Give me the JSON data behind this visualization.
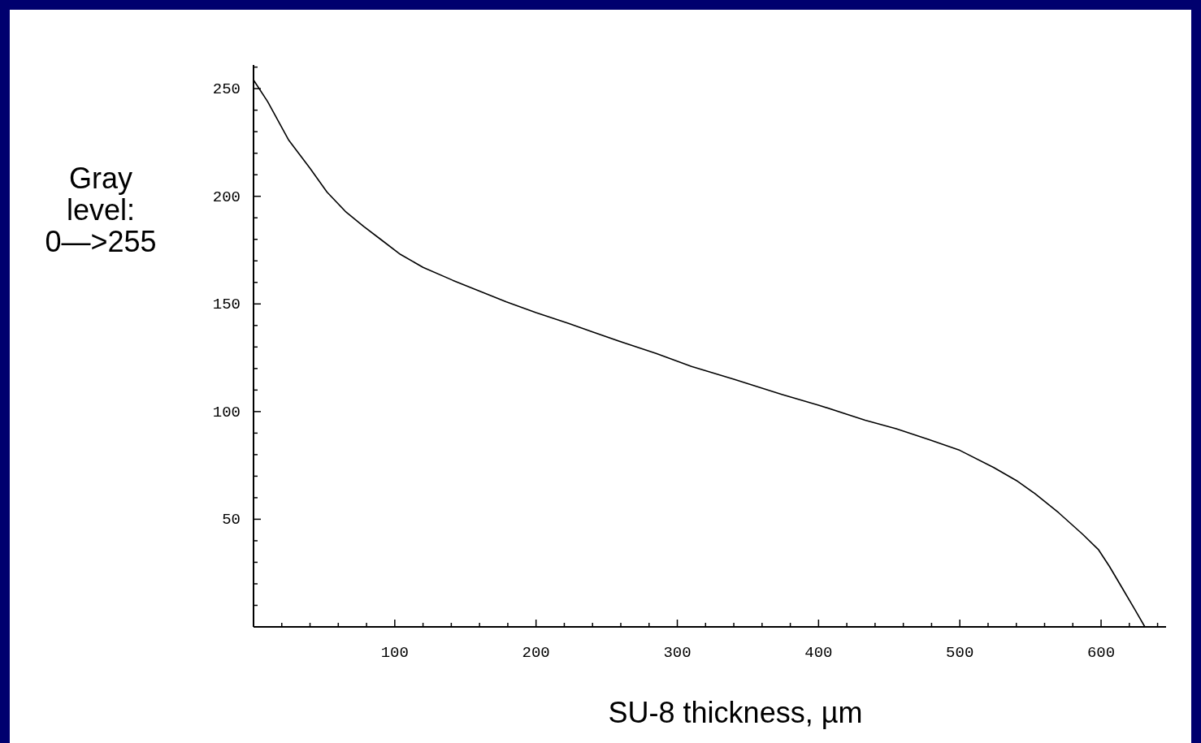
{
  "chart_data": {
    "type": "line",
    "xlabel": "SU-8 thickness, µm",
    "ylabel": "Gray level: 0—>255",
    "x": [
      0,
      10,
      25,
      40,
      52,
      65,
      78,
      90,
      104,
      120,
      141,
      160,
      179,
      200,
      223,
      240,
      262,
      285,
      310,
      340,
      374,
      400,
      433,
      455,
      478,
      500,
      524,
      540,
      553,
      570,
      587,
      598,
      606,
      615,
      624,
      631
    ],
    "series": [
      {
        "color": "#000000",
        "values": [
          254,
          244,
          226,
          213,
          202,
          193,
          186,
          180,
          173,
          167,
          161,
          156,
          151,
          146,
          141,
          137,
          132,
          127,
          121,
          115,
          108,
          103,
          96,
          92,
          87,
          82,
          74,
          68,
          62,
          53,
          43,
          36,
          28,
          18,
          8,
          0
        ]
      }
    ],
    "xlim": [
      0,
      646
    ],
    "ylim": [
      0,
      261
    ],
    "xticks": [
      {
        "value": 20,
        "label": null
      },
      {
        "value": 40,
        "label": null
      },
      {
        "value": 60,
        "label": null
      },
      {
        "value": 80,
        "label": null
      },
      100,
      {
        "value": 120,
        "label": null
      },
      {
        "value": 140,
        "label": null
      },
      {
        "value": 160,
        "label": null
      },
      {
        "value": 180,
        "label": null
      },
      200,
      {
        "value": 220,
        "label": null
      },
      {
        "value": 240,
        "label": null
      },
      {
        "value": 260,
        "label": null
      },
      {
        "value": 280,
        "label": null
      },
      300,
      {
        "value": 320,
        "label": null
      },
      {
        "value": 340,
        "label": null
      },
      {
        "value": 360,
        "label": null
      },
      {
        "value": 380,
        "label": null
      },
      400,
      {
        "value": 420,
        "label": null
      },
      {
        "value": 440,
        "label": null
      },
      {
        "value": 460,
        "label": null
      },
      {
        "value": 480,
        "label": null
      },
      500,
      {
        "value": 520,
        "label": null
      },
      {
        "value": 540,
        "label": null
      },
      {
        "value": 560,
        "label": null
      },
      {
        "value": 580,
        "label": null
      },
      600,
      {
        "value": 620,
        "label": null
      },
      {
        "value": 640,
        "label": null
      }
    ],
    "yticks": [
      {
        "value": 10,
        "label": null
      },
      {
        "value": 20,
        "label": null
      },
      {
        "value": 30,
        "label": null
      },
      {
        "value": 40,
        "label": null
      },
      50,
      {
        "value": 60,
        "label": null
      },
      {
        "value": 70,
        "label": null
      },
      {
        "value": 80,
        "label": null
      },
      {
        "value": 90,
        "label": null
      },
      100,
      {
        "value": 110,
        "label": null
      },
      {
        "value": 120,
        "label": null
      },
      {
        "value": 130,
        "label": null
      },
      {
        "value": 140,
        "label": null
      },
      150,
      {
        "value": 160,
        "label": null
      },
      {
        "value": 170,
        "label": null
      },
      {
        "value": 180,
        "label": null
      },
      {
        "value": 190,
        "label": null
      },
      200,
      {
        "value": 210,
        "label": null
      },
      {
        "value": 220,
        "label": null
      },
      {
        "value": 230,
        "label": null
      },
      {
        "value": 240,
        "label": null
      },
      250,
      {
        "value": 260,
        "label": null
      }
    ],
    "grid": false,
    "marker": "none",
    "line_style": "solid"
  }
}
